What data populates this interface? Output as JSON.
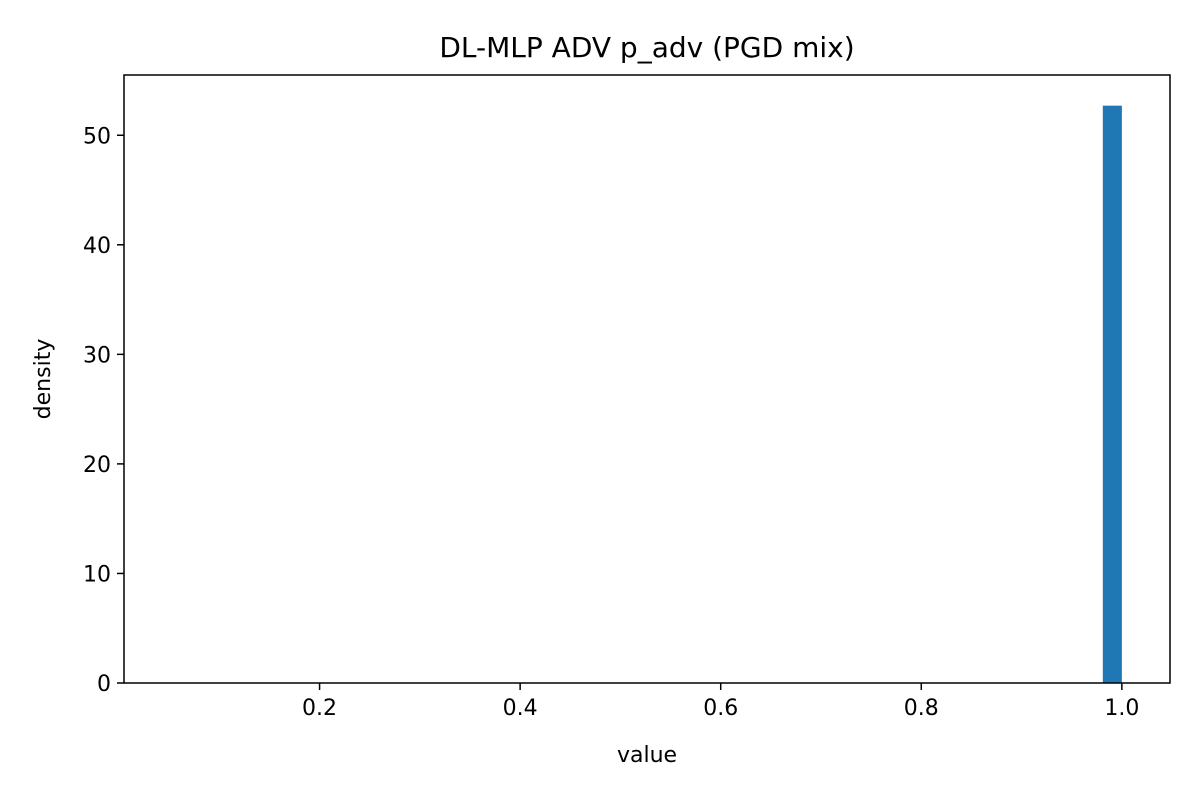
{
  "chart_data": {
    "type": "bar",
    "title": "DL-MLP ADV p_adv (PGD mix)",
    "xlabel": "value",
    "ylabel": "density",
    "xlim": [
      0.005,
      1.048
    ],
    "ylim": [
      0,
      55.5
    ],
    "x_ticks": [
      0.2,
      0.4,
      0.6,
      0.8,
      1.0
    ],
    "x_tick_labels": [
      "0.2",
      "0.4",
      "0.6",
      "0.8",
      "1.0"
    ],
    "y_ticks": [
      0,
      10,
      20,
      30,
      40,
      50
    ],
    "y_tick_labels": [
      "0",
      "10",
      "20",
      "30",
      "40",
      "50"
    ],
    "bins": [
      {
        "x0": 0.981,
        "x1": 1.0,
        "value": 52.7
      }
    ],
    "bar_color": "#1f77b4",
    "grid": false,
    "legend": "none"
  }
}
